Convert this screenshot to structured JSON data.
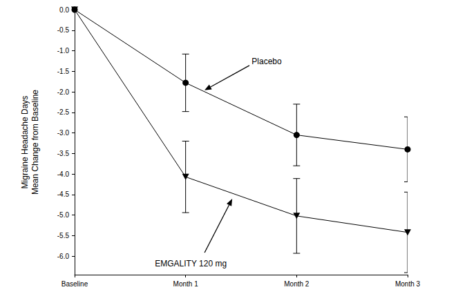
{
  "chart_data": {
    "type": "line",
    "y_label": "Migraine Headache Days\nMean Change from Baseline",
    "categories": [
      "Baseline",
      "Month 1",
      "Month 2",
      "Month 3"
    ],
    "series": [
      {
        "name": "Placebo",
        "color": "#000000",
        "marker": "circle",
        "line_style": "solid",
        "values": [
          0,
          -1.78,
          -3.05,
          -3.4
        ],
        "errors": [
          null,
          0.7,
          0.75,
          0.79
        ]
      },
      {
        "name": "EMGALITY 120 mg",
        "color": "#000000",
        "marker": "triangle-down",
        "line_style": "solid",
        "values": [
          0,
          -4.07,
          -5.02,
          -5.42
        ],
        "errors": [
          null,
          0.87,
          0.91,
          0.98
        ]
      }
    ],
    "ylim": [
      -6.45,
      0
    ],
    "yticks": [
      {
        "value": 0,
        "label": "0.0"
      },
      -0.5,
      {
        "value": -1,
        "label": "-1.0"
      },
      -1.5,
      {
        "value": -2,
        "label": "-2.0"
      },
      -2.5,
      {
        "value": -3,
        "label": "-3.0"
      },
      -3.5,
      {
        "value": -4,
        "label": "-4.0"
      },
      -4.5,
      {
        "value": -5,
        "label": "-5.0"
      },
      -5.5,
      {
        "value": -6,
        "label": "-6.0"
      }
    ],
    "grid": false
  }
}
